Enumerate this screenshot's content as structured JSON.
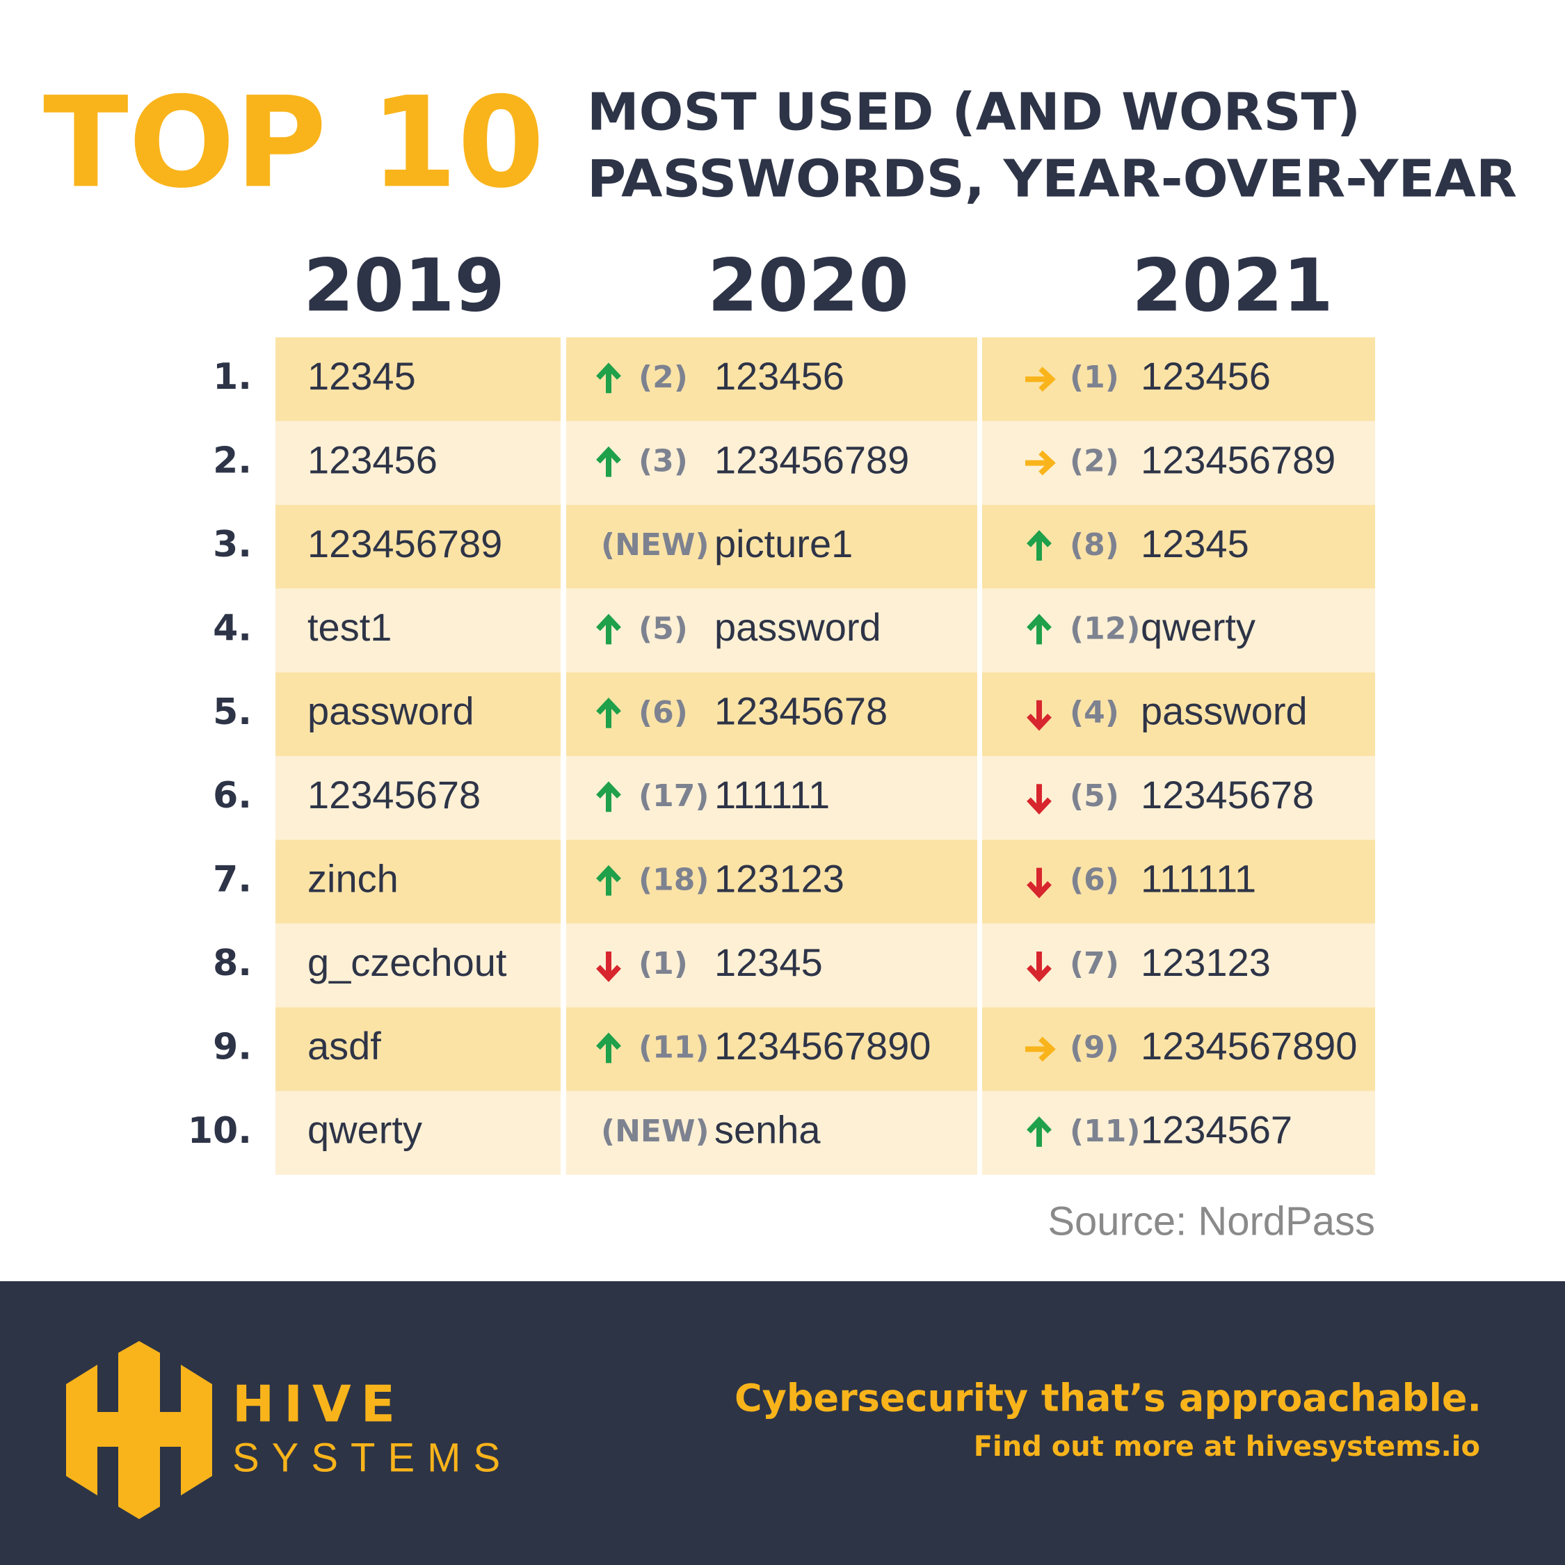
{
  "header": {
    "big": "TOP 10",
    "subtitle_line1": "MOST USED (AND WORST)",
    "subtitle_line2": "PASSWORDS, YEAR-OVER-YEAR"
  },
  "table": {
    "columns": [
      "2019",
      "2020",
      "2021"
    ],
    "rows": [
      {
        "rank": "1.",
        "y2019": "12345",
        "y2020": {
          "trend": "up",
          "previous": "(2)",
          "password": "123456"
        },
        "y2021": {
          "trend": "right",
          "previous": "(1)",
          "password": "123456"
        }
      },
      {
        "rank": "2.",
        "y2019": "123456",
        "y2020": {
          "trend": "up",
          "previous": "(3)",
          "password": "123456789"
        },
        "y2021": {
          "trend": "right",
          "previous": "(2)",
          "password": "123456789"
        }
      },
      {
        "rank": "3.",
        "y2019": "123456789",
        "y2020": {
          "previous": "(NEW)",
          "password": "picture1"
        },
        "y2021": {
          "trend": "up",
          "previous": "(8)",
          "password": "12345"
        }
      },
      {
        "rank": "4.",
        "y2019": "test1",
        "y2020": {
          "trend": "up",
          "previous": "(5)",
          "password": "password"
        },
        "y2021": {
          "trend": "up",
          "previous": "(12)",
          "password": "qwerty"
        }
      },
      {
        "rank": "5.",
        "y2019": "password",
        "y2020": {
          "trend": "up",
          "previous": "(6)",
          "password": "12345678"
        },
        "y2021": {
          "trend": "down",
          "previous": "(4)",
          "password": "password"
        }
      },
      {
        "rank": "6.",
        "y2019": "12345678",
        "y2020": {
          "trend": "up",
          "previous": "(17)",
          "password": "111111"
        },
        "y2021": {
          "trend": "down",
          "previous": "(5)",
          "password": "12345678"
        }
      },
      {
        "rank": "7.",
        "y2019": "zinch",
        "y2020": {
          "trend": "up",
          "previous": "(18)",
          "password": "123123"
        },
        "y2021": {
          "trend": "down",
          "previous": "(6)",
          "password": "111111"
        }
      },
      {
        "rank": "8.",
        "y2019": "g_czechout",
        "y2020": {
          "trend": "down",
          "previous": "(1)",
          "password": "12345"
        },
        "y2021": {
          "trend": "down",
          "previous": "(7)",
          "password": "123123"
        }
      },
      {
        "rank": "9.",
        "y2019": "asdf",
        "y2020": {
          "trend": "up",
          "previous": "(11)",
          "password": "1234567890"
        },
        "y2021": {
          "trend": "right",
          "previous": "(9)",
          "password": "1234567890"
        }
      },
      {
        "rank": "10.",
        "y2019": "qwerty",
        "y2020": {
          "previous": "(NEW)",
          "password": "senha"
        },
        "y2021": {
          "trend": "up",
          "previous": "(11)",
          "password": "1234567"
        }
      }
    ]
  },
  "source": "Source: NordPass",
  "footer": {
    "logo_line1": "HIVE",
    "logo_line2": "SYSTEMS",
    "tagline": "Cybersecurity that’s approachable.",
    "link": "Find out more at hivesystems.io"
  }
}
